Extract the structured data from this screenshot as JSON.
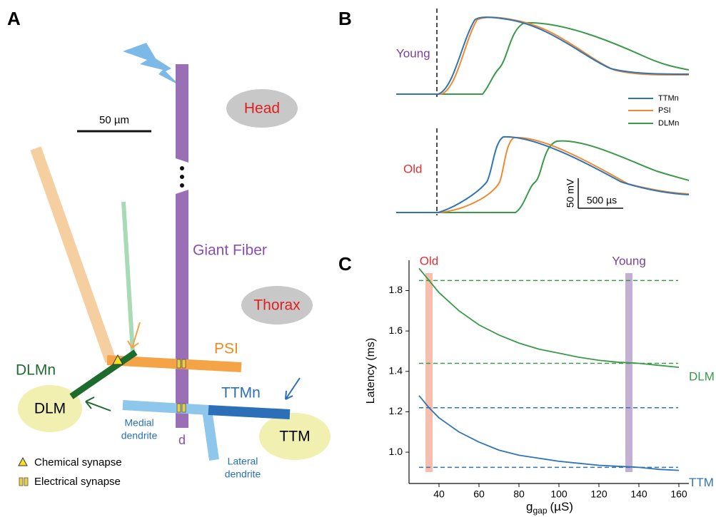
{
  "diagram": {
    "panel_labels": [
      "A",
      "B",
      "C"
    ],
    "head": "Head",
    "thorax": "Thorax",
    "giant_fiber": "Giant Fiber",
    "scale_bar": "50 µm",
    "psi": "PSI",
    "dlmn": "DLMn",
    "ttmn": "TTMn",
    "dlm": "DLM",
    "ttm": "TTM",
    "d": "d",
    "medial_dendrite": [
      "Medial",
      "dendrite"
    ],
    "lateral_dendrite": [
      "Lateral",
      "dendrite"
    ],
    "legend": [
      "Chemical synapse",
      "Electrical synapse"
    ],
    "traces": {
      "young": "Young",
      "old": "Old",
      "legend": [
        "TTMn",
        "PSI",
        "DLMn"
      ],
      "scale_v": "50 mV",
      "scale_t": "500 µs"
    }
  },
  "chart_data": {
    "type": "line",
    "y_label": "Latency (ms)",
    "x_label": {
      "main": "g",
      "sub": "gap",
      "unit": "(µS)"
    },
    "x": [
      30,
      35,
      40,
      50,
      60,
      70,
      80,
      90,
      100,
      110,
      120,
      130,
      140,
      150,
      160
    ],
    "series": [
      {
        "name": "DLM",
        "color": "#3a9a4a",
        "values": [
          1.91,
          1.85,
          1.79,
          1.7,
          1.63,
          1.58,
          1.54,
          1.51,
          1.49,
          1.47,
          1.455,
          1.445,
          1.44,
          1.43,
          1.42
        ]
      },
      {
        "name": "TTM",
        "color": "#2f74b5",
        "values": [
          1.28,
          1.22,
          1.17,
          1.1,
          1.05,
          1.01,
          0.985,
          0.97,
          0.955,
          0.945,
          0.935,
          0.93,
          0.925,
          0.915,
          0.91
        ]
      }
    ],
    "hlines": [
      {
        "value": 1.85,
        "color": "#3a9a4a"
      },
      {
        "value": 1.44,
        "color": "#3a9a4a"
      },
      {
        "value": 1.22,
        "color": "#2f74b5"
      },
      {
        "value": 0.925,
        "color": "#2f74b5"
      }
    ],
    "bands": [
      {
        "x": 35,
        "label": "Old",
        "color": "#f4b39e",
        "label_color": "#e03030"
      },
      {
        "x": 135,
        "label": "Young",
        "color": "#b9a2cc",
        "label_color": "#7a3f9a"
      }
    ],
    "xlim": [
      25,
      165
    ],
    "ylim": [
      0.845,
      1.95
    ],
    "xticks": [
      40,
      60,
      80,
      100,
      120,
      140,
      160
    ],
    "yticks": [
      {
        "value": 1.0,
        "label": "1.0"
      },
      {
        "value": 1.2,
        "label": "1.2"
      },
      {
        "value": 1.4,
        "label": "1.4"
      },
      {
        "value": 1.6,
        "label": "1.6"
      },
      {
        "value": 1.8,
        "label": "1.8"
      }
    ]
  }
}
